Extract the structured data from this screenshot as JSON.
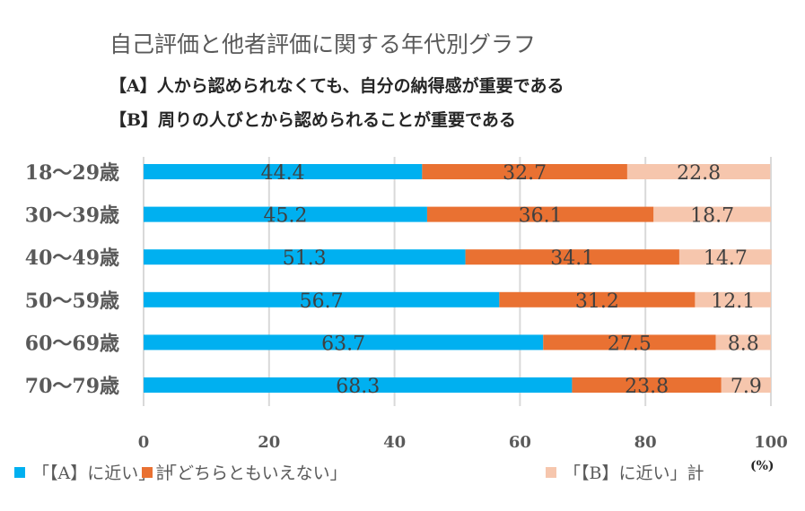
{
  "chart_data": {
    "type": "bar",
    "orientation": "horizontal",
    "stacked": true,
    "title": "自己評価と他者評価に関する年代別グラフ",
    "subtitles": [
      "【A】人から認められなくても、自分の納得感が重要である",
      "【B】周りの人びとから認められることが重要である"
    ],
    "categories": [
      "18〜29歳",
      "30〜39歳",
      "40〜49歳",
      "50〜59歳",
      "60〜69歳",
      "70〜79歳"
    ],
    "series": [
      {
        "name": "「【A】に近い」計",
        "color": "#00B0F0",
        "values": [
          44.4,
          45.2,
          51.3,
          56.7,
          63.7,
          68.3
        ]
      },
      {
        "name": "「どちらともいえない」",
        "color": "#E97132",
        "values": [
          32.7,
          36.1,
          34.1,
          31.2,
          27.5,
          23.8
        ]
      },
      {
        "name": "「【B】に近い」計",
        "color": "#F6C6AD",
        "values": [
          22.8,
          18.7,
          14.7,
          12.1,
          8.8,
          7.9
        ]
      }
    ],
    "xlim": [
      0,
      100
    ],
    "xticks": [
      "0",
      "20",
      "40",
      "60",
      "80",
      "100"
    ],
    "xlabel": "(%)",
    "ylabel": "",
    "grid": true,
    "legend": "bottom",
    "gridline_color": "#D9D9D9",
    "label_color": "#404040"
  }
}
